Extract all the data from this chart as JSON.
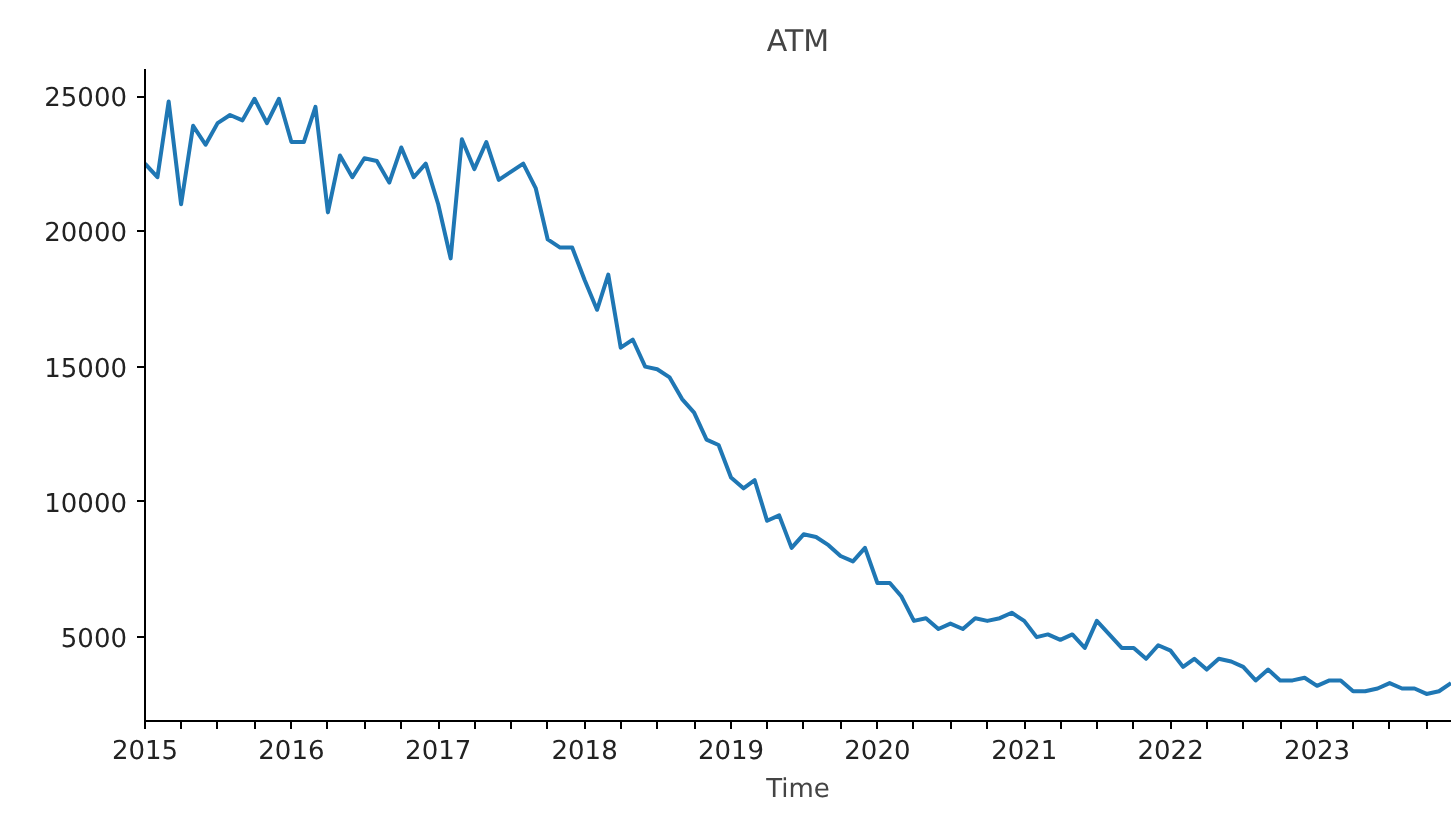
{
  "chart_data": {
    "type": "line",
    "title": "ATM",
    "xlabel": "Time",
    "x": [
      "2015-01",
      "2015-02",
      "2015-03",
      "2015-04",
      "2015-05",
      "2015-06",
      "2015-07",
      "2015-08",
      "2015-09",
      "2015-10",
      "2015-11",
      "2015-12",
      "2016-01",
      "2016-02",
      "2016-03",
      "2016-04",
      "2016-05",
      "2016-06",
      "2016-07",
      "2016-08",
      "2016-09",
      "2016-10",
      "2016-11",
      "2016-12",
      "2017-01",
      "2017-02",
      "2017-03",
      "2017-04",
      "2017-05",
      "2017-06",
      "2017-07",
      "2017-08",
      "2017-09",
      "2017-10",
      "2017-11",
      "2017-12",
      "2018-01",
      "2018-02",
      "2018-03",
      "2018-04",
      "2018-05",
      "2018-06",
      "2018-07",
      "2018-08",
      "2018-09",
      "2018-10",
      "2018-11",
      "2018-12",
      "2019-01",
      "2019-02",
      "2019-03",
      "2019-04",
      "2019-05",
      "2019-06",
      "2019-07",
      "2019-08",
      "2019-09",
      "2019-10",
      "2019-11",
      "2019-12",
      "2020-01",
      "2020-02",
      "2020-03",
      "2020-04",
      "2020-05",
      "2020-06",
      "2020-07",
      "2020-08",
      "2020-09",
      "2020-10",
      "2020-11",
      "2020-12",
      "2021-01",
      "2021-02",
      "2021-03",
      "2021-04",
      "2021-05",
      "2021-06",
      "2021-07",
      "2021-08",
      "2021-09",
      "2021-10",
      "2021-11",
      "2021-12",
      "2022-01",
      "2022-02",
      "2022-03",
      "2022-04",
      "2022-05",
      "2022-06",
      "2022-07",
      "2022-08",
      "2022-09",
      "2022-10",
      "2022-11",
      "2022-12",
      "2023-01",
      "2023-02",
      "2023-03",
      "2023-04",
      "2023-05",
      "2023-06",
      "2023-07",
      "2023-08",
      "2023-09",
      "2023-10",
      "2023-11",
      "2023-12"
    ],
    "series": [
      {
        "color": "#1f77b4",
        "values": [
          22500,
          22000,
          24800,
          21000,
          23900,
          23200,
          24000,
          24300,
          24100,
          24900,
          24000,
          24900,
          23300,
          23300,
          24600,
          20700,
          22800,
          22000,
          22700,
          22600,
          21800,
          23100,
          22000,
          22500,
          21000,
          19000,
          23400,
          22300,
          23300,
          21900,
          22200,
          22500,
          21600,
          19700,
          19400,
          19400,
          18200,
          17100,
          18400,
          15700,
          16000,
          15000,
          14900,
          14600,
          13800,
          13300,
          12300,
          12100,
          10900,
          10500,
          10800,
          9300,
          9500,
          8300,
          8800,
          8700,
          8400,
          8000,
          7800,
          8300,
          7000,
          7000,
          6500,
          5600,
          5700,
          5300,
          5500,
          5300,
          5700,
          5600,
          5700,
          5900,
          5600,
          5000,
          5100,
          4900,
          5100,
          4600,
          5600,
          5100,
          4600,
          4600,
          4200,
          4700,
          4500,
          3900,
          4200,
          3800,
          4200,
          4100,
          3900,
          3400,
          3800,
          3400,
          3400,
          3500,
          3200,
          3400,
          3400,
          3000,
          3000,
          3100,
          3300,
          3100,
          3100,
          2900,
          3000,
          3300
        ]
      }
    ],
    "xlim": [
      "2015-01",
      "2023-12"
    ],
    "xticks": [
      {
        "value": "2015-01",
        "label": "2015"
      },
      {
        "value": "2015-04",
        "label": null
      },
      {
        "value": "2015-07",
        "label": null
      },
      {
        "value": "2015-10",
        "label": null
      },
      {
        "value": "2016-01",
        "label": "2016"
      },
      {
        "value": "2016-04",
        "label": null
      },
      {
        "value": "2016-07",
        "label": null
      },
      {
        "value": "2016-10",
        "label": null
      },
      {
        "value": "2017-01",
        "label": "2017"
      },
      {
        "value": "2017-04",
        "label": null
      },
      {
        "value": "2017-07",
        "label": null
      },
      {
        "value": "2017-10",
        "label": null
      },
      {
        "value": "2018-01",
        "label": "2018"
      },
      {
        "value": "2018-04",
        "label": null
      },
      {
        "value": "2018-07",
        "label": null
      },
      {
        "value": "2018-10",
        "label": null
      },
      {
        "value": "2019-01",
        "label": "2019"
      },
      {
        "value": "2019-04",
        "label": null
      },
      {
        "value": "2019-07",
        "label": null
      },
      {
        "value": "2019-10",
        "label": null
      },
      {
        "value": "2020-01",
        "label": "2020"
      },
      {
        "value": "2020-04",
        "label": null
      },
      {
        "value": "2020-07",
        "label": null
      },
      {
        "value": "2020-10",
        "label": null
      },
      {
        "value": "2021-01",
        "label": "2021"
      },
      {
        "value": "2021-04",
        "label": null
      },
      {
        "value": "2021-07",
        "label": null
      },
      {
        "value": "2021-10",
        "label": null
      },
      {
        "value": "2022-01",
        "label": "2022"
      },
      {
        "value": "2022-04",
        "label": null
      },
      {
        "value": "2022-07",
        "label": null
      },
      {
        "value": "2022-10",
        "label": null
      },
      {
        "value": "2023-01",
        "label": "2023"
      },
      {
        "value": "2023-04",
        "label": null
      },
      {
        "value": "2023-07",
        "label": null
      },
      {
        "value": "2023-10",
        "label": null
      }
    ],
    "ylim": [
      1900,
      26000
    ],
    "yticks": [
      5000,
      10000,
      15000,
      20000,
      25000
    ],
    "grid": false,
    "marker": "none",
    "line_style": "solid"
  }
}
